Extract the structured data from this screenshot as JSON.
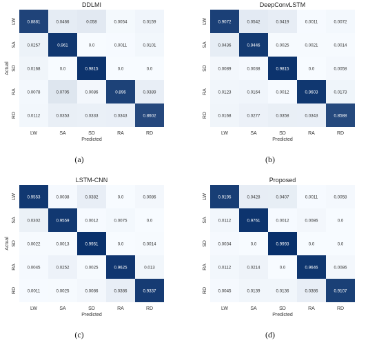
{
  "labels": [
    "LW",
    "SA",
    "SD",
    "RA",
    "RD"
  ],
  "xlabel": "Predicted",
  "ylabel": "Actual",
  "colors": {
    "low": "#f7fbff",
    "high": "#08306b",
    "dark_text_threshold": 0.5
  },
  "chart_data": [
    {
      "type": "heatmap",
      "title": "DDLMI",
      "caption": "(a)",
      "xlabel": "Predicted",
      "ylabel": "Actual",
      "x_categories": [
        "LW",
        "SA",
        "SD",
        "RA",
        "RD"
      ],
      "y_categories": [
        "LW",
        "SA",
        "SD",
        "RA",
        "RD"
      ],
      "values": [
        [
          "0.8881",
          "0.0466",
          "0.058",
          "0.0054",
          "0.0159"
        ],
        [
          "0.0257",
          "0.961",
          "0.0",
          "0.0011",
          "0.0101"
        ],
        [
          "0.0168",
          "0.0",
          "0.9815",
          "0.0",
          "0.0"
        ],
        [
          "0.0078",
          "0.0705",
          "0.0086",
          "0.896",
          "0.0389"
        ],
        [
          "0.0112",
          "0.0353",
          "0.0333",
          "0.0343",
          "0.8602"
        ]
      ]
    },
    {
      "type": "heatmap",
      "title": "DeepConvLSTM",
      "caption": "(b)",
      "xlabel": "Predicted",
      "ylabel": "Actual",
      "x_categories": [
        "LW",
        "SA",
        "SD",
        "RA",
        "RD"
      ],
      "y_categories": [
        "LW",
        "SA",
        "SD",
        "RA",
        "RD"
      ],
      "values": [
        [
          "0.9072",
          "0.0542",
          "0.0419",
          "0.0011",
          "0.0072"
        ],
        [
          "0.0436",
          "0.9446",
          "0.0025",
          "0.0021",
          "0.0014"
        ],
        [
          "0.0089",
          "0.0038",
          "0.9815",
          "0.0",
          "0.0058"
        ],
        [
          "0.0123",
          "0.0164",
          "0.0012",
          "0.9603",
          "0.0173"
        ],
        [
          "0.0168",
          "0.0277",
          "0.0358",
          "0.0343",
          "0.8588"
        ]
      ]
    },
    {
      "type": "heatmap",
      "title": "LSTM-CNN",
      "caption": "(c)",
      "xlabel": "Predicted",
      "ylabel": "Actual",
      "x_categories": [
        "LW",
        "SA",
        "SD",
        "RA",
        "RD"
      ],
      "y_categories": [
        "LW",
        "SA",
        "SD",
        "RA",
        "RD"
      ],
      "values": [
        [
          "0.9553",
          "0.0038",
          "0.0382",
          "0.0",
          "0.0086"
        ],
        [
          "0.0302",
          "0.9559",
          "0.0012",
          "0.0075",
          "0.0"
        ],
        [
          "0.0022",
          "0.0013",
          "0.9951",
          "0.0",
          "0.0014"
        ],
        [
          "0.0045",
          "0.0252",
          "0.0025",
          "0.9625",
          "0.013"
        ],
        [
          "0.0011",
          "0.0025",
          "0.0086",
          "0.0386",
          "0.9337"
        ]
      ]
    },
    {
      "type": "heatmap",
      "title": "Proposed",
      "caption": "(d)",
      "xlabel": "Predicted",
      "ylabel": "Actual",
      "x_categories": [
        "LW",
        "SA",
        "SD",
        "RA",
        "RD"
      ],
      "y_categories": [
        "LW",
        "SA",
        "SD",
        "RA",
        "RD"
      ],
      "values": [
        [
          "0.9195",
          "0.0428",
          "0.0407",
          "0.0011",
          "0.0058"
        ],
        [
          "0.0112",
          "0.9761",
          "0.0012",
          "0.0086",
          "0.0"
        ],
        [
          "0.0034",
          "0.0",
          "0.9993",
          "0.0",
          "0.0"
        ],
        [
          "0.0112",
          "0.0214",
          "0.0",
          "0.9646",
          "0.0086"
        ],
        [
          "0.0045",
          "0.0139",
          "0.0136",
          "0.0386",
          "0.9107"
        ]
      ]
    }
  ]
}
